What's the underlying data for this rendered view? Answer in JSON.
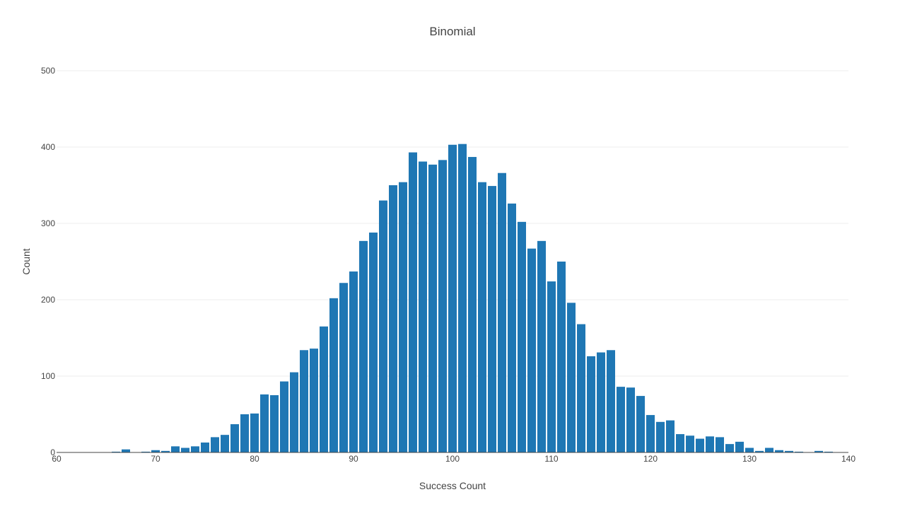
{
  "chart_data": {
    "type": "bar",
    "title": "Binomial",
    "xlabel": "Success Count",
    "ylabel": "Count",
    "xlim": [
      60,
      140
    ],
    "ylim": [
      0,
      500
    ],
    "x_ticks": [
      60,
      70,
      80,
      90,
      100,
      110,
      120,
      130,
      140
    ],
    "y_ticks": [
      0,
      100,
      200,
      300,
      400,
      500
    ],
    "grid": true,
    "bar_color": "#1f77b4",
    "series": [
      {
        "x": [
          66,
          67,
          68,
          69,
          70,
          71,
          72,
          73,
          74,
          75,
          76,
          77,
          78,
          79,
          80,
          81,
          82,
          83,
          84,
          85,
          86,
          87,
          88,
          89,
          90,
          91,
          92,
          93,
          94,
          95,
          96,
          97,
          98,
          99,
          100,
          101,
          102,
          103,
          104,
          105,
          106,
          107,
          108,
          109,
          110,
          111,
          112,
          113,
          114,
          115,
          116,
          117,
          118,
          119,
          120,
          121,
          122,
          123,
          124,
          125,
          126,
          127,
          128,
          129,
          130,
          131,
          132,
          133,
          134,
          135,
          136,
          137,
          138,
          139
        ],
        "values": [
          1,
          4,
          0,
          1,
          3,
          2,
          8,
          6,
          8,
          13,
          20,
          23,
          37,
          50,
          51,
          76,
          75,
          93,
          105,
          134,
          136,
          165,
          202,
          222,
          237,
          277,
          288,
          330,
          350,
          354,
          393,
          381,
          377,
          383,
          403,
          404,
          387,
          354,
          349,
          366,
          326,
          302,
          267,
          277,
          224,
          250,
          196,
          168,
          126,
          131,
          134,
          86,
          85,
          74,
          49,
          40,
          42,
          24,
          22,
          18,
          21,
          20,
          11,
          14,
          6,
          2,
          6,
          3,
          2,
          1,
          0,
          2,
          1,
          0
        ]
      }
    ]
  }
}
